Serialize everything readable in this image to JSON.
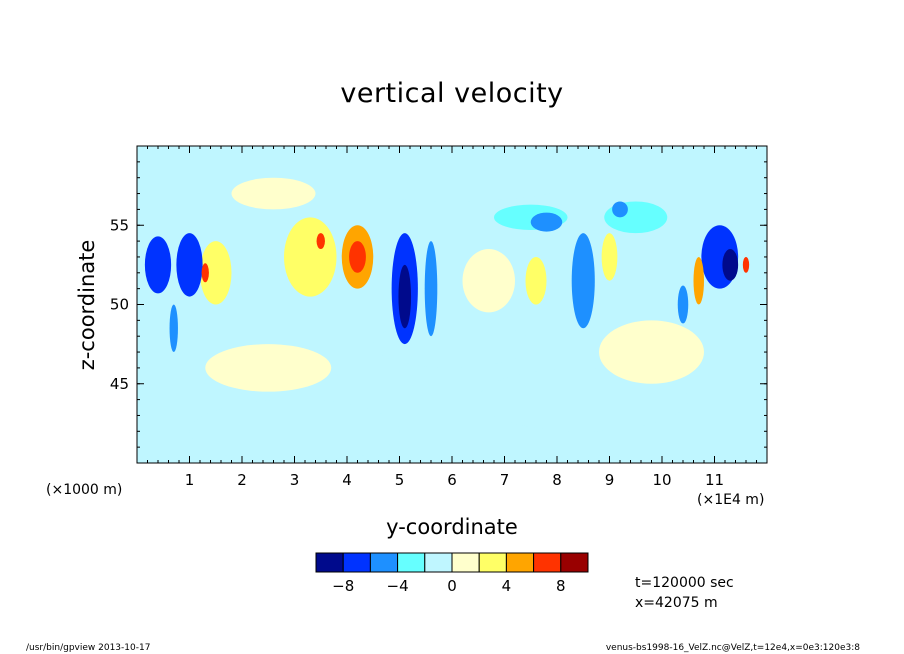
{
  "chart_data": {
    "type": "heatmap",
    "title": "vertical velocity",
    "xlabel": "y-coordinate",
    "ylabel": "z-coordinate",
    "x_unit": "(×1E4 m)",
    "y_unit": "(×1000 m)",
    "xlim": [
      0,
      12
    ],
    "ylim": [
      40,
      60
    ],
    "x_ticks": [
      "1",
      "2",
      "3",
      "4",
      "5",
      "6",
      "7",
      "8",
      "9",
      "10",
      "11"
    ],
    "x_tick_values": [
      1,
      2,
      3,
      4,
      5,
      6,
      7,
      8,
      9,
      10,
      11
    ],
    "y_ticks": [
      "45",
      "50",
      "55"
    ],
    "y_tick_values": [
      45,
      50,
      55
    ],
    "colorbar": {
      "levels": [
        -10,
        -8,
        -6,
        -4,
        -2,
        0,
        2,
        4,
        6,
        8,
        10
      ],
      "labels": [
        "-8",
        "-4",
        "0",
        "4",
        "8"
      ],
      "label_values": [
        -8,
        -4,
        0,
        4,
        8
      ],
      "colors": [
        "#000a8c",
        "#0033ff",
        "#1e90ff",
        "#66ffff",
        "#bff6ff",
        "#ffffcc",
        "#ffff66",
        "#ffa500",
        "#ff3300",
        "#990000"
      ]
    },
    "regions": [
      {
        "y": 0.4,
        "z": 52.5,
        "ry": 0.25,
        "rz": 1.8,
        "value": -7
      },
      {
        "y": 1.0,
        "z": 52.5,
        "ry": 0.25,
        "rz": 2.0,
        "value": -7
      },
      {
        "y": 0.7,
        "z": 48.5,
        "ry": 0.08,
        "rz": 1.5,
        "value": -5
      },
      {
        "y": 1.3,
        "z": 52.0,
        "ry": 0.07,
        "rz": 0.6,
        "value": 6
      },
      {
        "y": 1.5,
        "z": 52.0,
        "ry": 0.3,
        "rz": 2.0,
        "value": 3
      },
      {
        "y": 3.3,
        "z": 53.0,
        "ry": 0.5,
        "rz": 2.5,
        "value": 3
      },
      {
        "y": 3.5,
        "z": 54.0,
        "ry": 0.08,
        "rz": 0.5,
        "value": 6
      },
      {
        "y": 4.2,
        "z": 53.0,
        "ry": 0.3,
        "rz": 2.0,
        "value": 5
      },
      {
        "y": 4.2,
        "z": 53.0,
        "ry": 0.16,
        "rz": 1.0,
        "value": 7
      },
      {
        "y": 5.1,
        "z": 51.0,
        "ry": 0.25,
        "rz": 3.5,
        "value": -7
      },
      {
        "y": 5.1,
        "z": 50.5,
        "ry": 0.12,
        "rz": 2.0,
        "value": -9
      },
      {
        "y": 5.6,
        "z": 51.0,
        "ry": 0.12,
        "rz": 3.0,
        "value": -6
      },
      {
        "y": 6.7,
        "z": 51.5,
        "ry": 0.5,
        "rz": 2.0,
        "value": 1
      },
      {
        "y": 7.6,
        "z": 51.5,
        "ry": 0.2,
        "rz": 1.5,
        "value": 3
      },
      {
        "y": 7.5,
        "z": 55.5,
        "ry": 0.7,
        "rz": 0.8,
        "value": -3
      },
      {
        "y": 7.8,
        "z": 55.2,
        "ry": 0.3,
        "rz": 0.6,
        "value": -6
      },
      {
        "y": 8.5,
        "z": 51.5,
        "ry": 0.22,
        "rz": 3.0,
        "value": -6
      },
      {
        "y": 9.0,
        "z": 53.0,
        "ry": 0.15,
        "rz": 1.5,
        "value": 3
      },
      {
        "y": 9.5,
        "z": 55.5,
        "ry": 0.6,
        "rz": 1.0,
        "value": -3
      },
      {
        "y": 9.2,
        "z": 56.0,
        "ry": 0.15,
        "rz": 0.5,
        "value": -6
      },
      {
        "y": 10.4,
        "z": 50.0,
        "ry": 0.1,
        "rz": 1.2,
        "value": -6
      },
      {
        "y": 10.7,
        "z": 51.5,
        "ry": 0.1,
        "rz": 1.5,
        "value": 4
      },
      {
        "y": 11.1,
        "z": 53.0,
        "ry": 0.35,
        "rz": 2.0,
        "value": -7
      },
      {
        "y": 11.3,
        "z": 52.5,
        "ry": 0.15,
        "rz": 1.0,
        "value": -9
      },
      {
        "y": 11.6,
        "z": 52.5,
        "ry": 0.06,
        "rz": 0.5,
        "value": 6
      },
      {
        "y": 6.0,
        "z": 47.5,
        "ry": 1.5,
        "rz": 1.5,
        "value": -1
      },
      {
        "y": 2.5,
        "z": 46.0,
        "ry": 1.2,
        "rz": 1.5,
        "value": 1
      },
      {
        "y": 8.5,
        "z": 44.0,
        "ry": 2.0,
        "rz": 2.0,
        "value": -1
      },
      {
        "y": 3.0,
        "z": 42.0,
        "ry": 2.0,
        "rz": 2.0,
        "value": -1
      },
      {
        "y": 6.0,
        "z": 58.0,
        "ry": 2.5,
        "rz": 1.5,
        "value": -1
      },
      {
        "y": 9.8,
        "z": 47.0,
        "ry": 1.0,
        "rz": 2.0,
        "value": 1
      },
      {
        "y": 2.6,
        "z": 57.0,
        "ry": 0.8,
        "rz": 1.0,
        "value": 1
      }
    ]
  },
  "info": {
    "time": "t=120000 sec",
    "position": "x=42075 m"
  },
  "footer": {
    "left": "/usr/bin/gpview  2013-10-17",
    "right": "venus-bs1998-16_VelZ.nc@VelZ,t=12e4,x=0e3:120e3:8"
  }
}
